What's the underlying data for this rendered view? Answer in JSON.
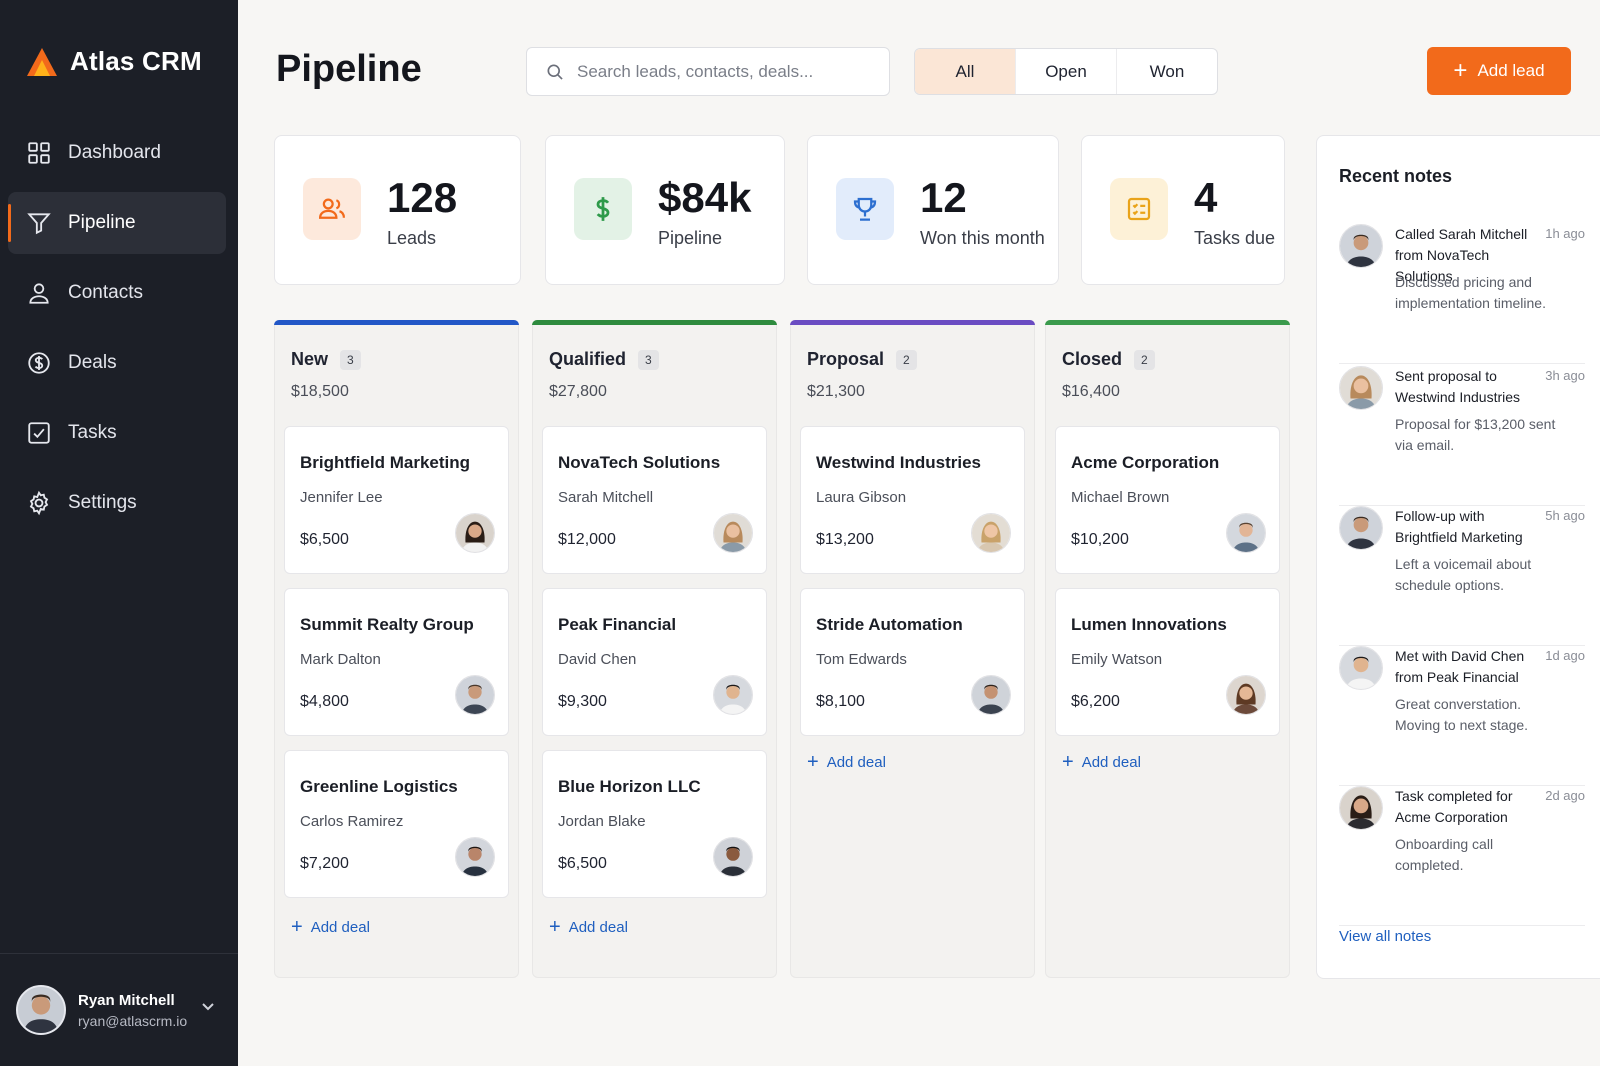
{
  "app": {
    "name": "Atlas CRM"
  },
  "sidebar": {
    "items": [
      {
        "label": "Dashboard",
        "icon": "grid-icon"
      },
      {
        "label": "Pipeline",
        "icon": "filter-icon",
        "active": true
      },
      {
        "label": "Contacts",
        "icon": "user-icon"
      },
      {
        "label": "Deals",
        "icon": "dollar-circle-icon"
      },
      {
        "label": "Tasks",
        "icon": "checkbox-icon"
      },
      {
        "label": "Settings",
        "icon": "gear-icon"
      }
    ],
    "user": {
      "name": "Ryan Mitchell",
      "email": "ryan@atlascrm.io"
    }
  },
  "header": {
    "title": "Pipeline",
    "search_placeholder": "Search leads, contacts, deals...",
    "filters": [
      "All",
      "Open",
      "Won"
    ],
    "active_filter": "All",
    "add_lead_label": "Add lead"
  },
  "stats": [
    {
      "value": "128",
      "label": "Leads",
      "icon": "users-icon",
      "color": "#f26a1b"
    },
    {
      "value": "$84k",
      "label": "Pipeline",
      "icon": "dollar-icon",
      "color": "#2e9a4a"
    },
    {
      "value": "12",
      "label": "Won this month",
      "icon": "trophy-icon",
      "color": "#2d6fd0"
    },
    {
      "value": "4",
      "label": "Tasks due",
      "icon": "checklist-icon",
      "color": "#e9a319"
    }
  ],
  "columns": [
    {
      "title": "New",
      "count": "3",
      "total": "$18,500",
      "color": "#2257c7",
      "add_label": "Add deal",
      "cards": [
        {
          "company": "Brightfield Marketing",
          "contact": "Jennifer Lee",
          "amount": "$6,500"
        },
        {
          "company": "Summit Realty Group",
          "contact": "Mark Dalton",
          "amount": "$4,800"
        },
        {
          "company": "Greenline Logistics",
          "contact": "Carlos Ramirez",
          "amount": "$7,200"
        }
      ]
    },
    {
      "title": "Qualified",
      "count": "3",
      "total": "$27,800",
      "color": "#2e8b3e",
      "add_label": "Add deal",
      "cards": [
        {
          "company": "NovaTech Solutions",
          "contact": "Sarah Mitchell",
          "amount": "$12,000"
        },
        {
          "company": "Peak Financial",
          "contact": "David Chen",
          "amount": "$9,300"
        },
        {
          "company": "Blue Horizon LLC",
          "contact": "Jordan Blake",
          "amount": "$6,500"
        }
      ]
    },
    {
      "title": "Proposal",
      "count": "2",
      "total": "$21,300",
      "color": "#6a4cc2",
      "add_label": "Add deal",
      "cards": [
        {
          "company": "Westwind Industries",
          "contact": "Laura Gibson",
          "amount": "$13,200"
        },
        {
          "company": "Stride Automation",
          "contact": "Tom Edwards",
          "amount": "$8,100"
        }
      ]
    },
    {
      "title": "Closed",
      "count": "2",
      "total": "$16,400",
      "color": "#3a9a4c",
      "add_label": "Add deal",
      "cards": [
        {
          "company": "Acme Corporation",
          "contact": "Michael Brown",
          "amount": "$10,200"
        },
        {
          "company": "Lumen Innovations",
          "contact": "Emily Watson",
          "amount": "$6,200"
        }
      ]
    }
  ],
  "notes": {
    "title": "Recent notes",
    "items": [
      {
        "title": "Called Sarah Mitchell from NovaTech Solutions",
        "time": "1h ago",
        "body": "Discussed pricing and implementation timeline."
      },
      {
        "title": "Sent proposal to Westwind Industries",
        "time": "3h ago",
        "body": "Proposal for $13,200 sent via email."
      },
      {
        "title": "Follow-up with Brightfield Marketing",
        "time": "5h ago",
        "body": "Left a voicemail about schedule options."
      },
      {
        "title": "Met with David Chen from Peak Financial",
        "time": "1d ago",
        "body": "Great converstation. Moving to next stage."
      },
      {
        "title": "Task completed for Acme Corporation",
        "time": "2d ago",
        "body": "Onboarding call completed."
      }
    ],
    "view_all_label": "View all notes"
  },
  "colors": {
    "accent": "#f26a1b",
    "sidebar": "#1c1f27",
    "link": "#1f5fbf"
  }
}
